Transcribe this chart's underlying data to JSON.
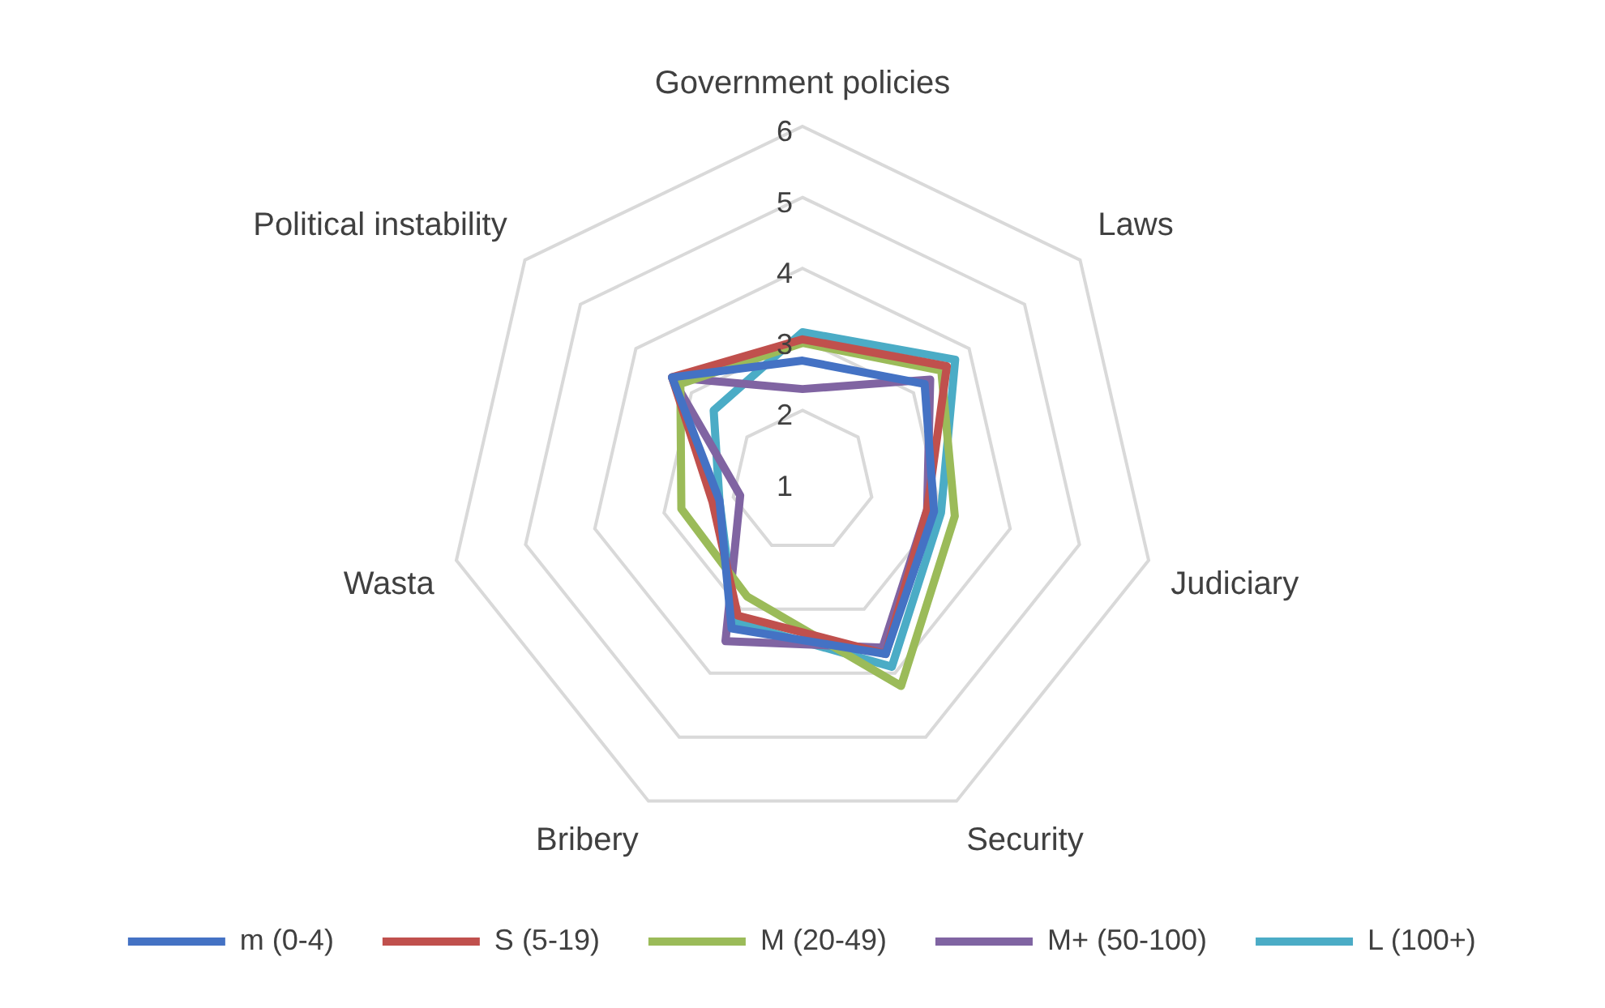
{
  "chart_data": {
    "type": "radar",
    "categories": [
      "Government policies",
      "Laws",
      "Judiciary",
      "Security",
      "Bribery",
      "Wasta",
      "Political instability"
    ],
    "series": [
      {
        "name": "m (0-4)",
        "color": "#4472c4",
        "values": [
          2.7,
          3.2,
          2.9,
          3.7,
          3.3,
          2.2,
          3.35
        ]
      },
      {
        "name": "S (5-19)",
        "color": "#c0504d",
        "values": [
          3.0,
          3.6,
          2.8,
          3.7,
          3.1,
          2.3,
          3.35
        ]
      },
      {
        "name": "M (20-49)",
        "color": "#9bbb59",
        "values": [
          2.95,
          3.5,
          3.2,
          4.2,
          2.8,
          2.75,
          3.2
        ]
      },
      {
        "name": "M+ (50-100)",
        "color": "#8064a2",
        "values": [
          2.3,
          3.3,
          2.8,
          3.6,
          3.5,
          1.9,
          3.35
        ]
      },
      {
        "name": "L (100+)",
        "color": "#4bacc6",
        "values": [
          3.1,
          3.75,
          3.0,
          3.9,
          3.2,
          2.2,
          2.6
        ]
      }
    ],
    "ylim": [
      1,
      6
    ],
    "yticks": [
      1,
      2,
      3,
      4,
      5,
      6
    ],
    "grid": true,
    "legend": "bottom",
    "marker": "none"
  }
}
